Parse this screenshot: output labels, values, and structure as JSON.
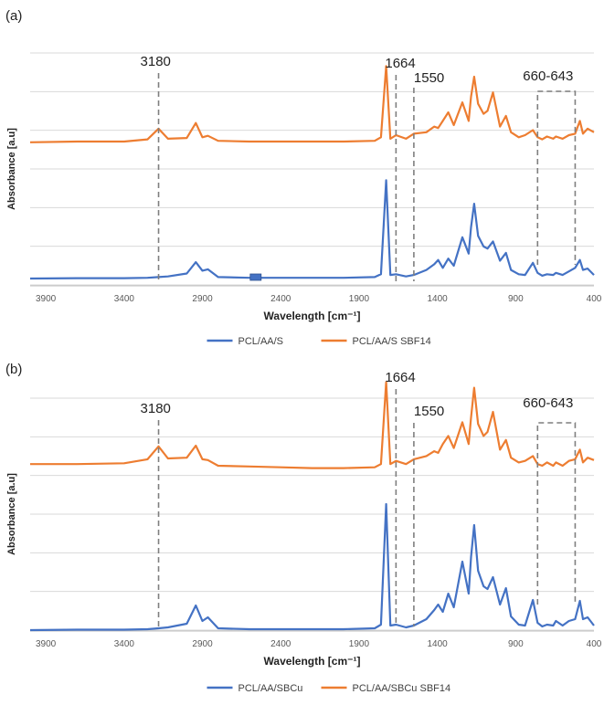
{
  "chart_data": [
    {
      "type": "line",
      "panel_label": "(a)",
      "xlabel": "Wavelength [cm⁻¹]",
      "ylabel": "Absorbance [a.u]",
      "xlim": [
        4000,
        400
      ],
      "xticks": [
        3900,
        3400,
        2900,
        2400,
        1900,
        1400,
        900,
        400
      ],
      "grid": true,
      "legend_position": "bottom",
      "colors": {
        "blue": "#4472C4",
        "orange": "#ED7D31",
        "annotation": "#7f7f7f"
      },
      "annotations": [
        {
          "text": "3180",
          "x": 3180
        },
        {
          "text": "1664",
          "x": 1664
        },
        {
          "text": "1550",
          "x": 1550
        },
        {
          "text": "660-643",
          "x_range": [
            760,
            520
          ]
        }
      ],
      "series": [
        {
          "name": "PCL/AA/S SBF14",
          "color": "#ED7D31",
          "x": [
            4000,
            3700,
            3400,
            3250,
            3180,
            3120,
            3000,
            2942,
            2900,
            2865,
            2800,
            2600,
            2400,
            2200,
            2000,
            1800,
            1760,
            1727,
            1700,
            1664,
            1600,
            1550,
            1470,
            1420,
            1395,
            1365,
            1330,
            1295,
            1240,
            1200,
            1185,
            1165,
            1140,
            1105,
            1080,
            1045,
            1000,
            962,
            930,
            880,
            840,
            790,
            760,
            730,
            700,
            660,
            643,
            600,
            560,
            520,
            490,
            470,
            440,
            400
          ],
          "y": [
            0.08,
            0.09,
            0.09,
            0.12,
            0.27,
            0.13,
            0.14,
            0.35,
            0.15,
            0.17,
            0.1,
            0.09,
            0.09,
            0.09,
            0.09,
            0.1,
            0.15,
            1.15,
            0.13,
            0.18,
            0.13,
            0.2,
            0.22,
            0.3,
            0.28,
            0.38,
            0.5,
            0.32,
            0.64,
            0.38,
            0.72,
            1.0,
            0.62,
            0.48,
            0.52,
            0.78,
            0.3,
            0.45,
            0.22,
            0.15,
            0.18,
            0.25,
            0.15,
            0.12,
            0.16,
            0.13,
            0.16,
            0.13,
            0.18,
            0.2,
            0.38,
            0.2,
            0.27,
            0.22
          ]
        },
        {
          "name": "PCL/AA/S",
          "color": "#4472C4",
          "x": [
            4000,
            3700,
            3400,
            3250,
            3180,
            3120,
            3000,
            2942,
            2900,
            2865,
            2800,
            2600,
            2400,
            2200,
            2000,
            1800,
            1760,
            1727,
            1700,
            1664,
            1600,
            1550,
            1470,
            1420,
            1395,
            1365,
            1330,
            1295,
            1240,
            1200,
            1185,
            1165,
            1140,
            1105,
            1080,
            1045,
            1000,
            962,
            930,
            880,
            840,
            790,
            760,
            730,
            700,
            660,
            643,
            600,
            560,
            520,
            490,
            470,
            440,
            400
          ],
          "y": [
            0.0,
            0.005,
            0.005,
            0.01,
            0.02,
            0.03,
            0.07,
            0.23,
            0.11,
            0.13,
            0.02,
            0.01,
            0.01,
            0.01,
            0.01,
            0.02,
            0.06,
            1.38,
            0.05,
            0.06,
            0.03,
            0.05,
            0.12,
            0.2,
            0.26,
            0.15,
            0.28,
            0.18,
            0.58,
            0.35,
            0.72,
            1.05,
            0.6,
            0.45,
            0.42,
            0.52,
            0.25,
            0.36,
            0.12,
            0.06,
            0.05,
            0.22,
            0.08,
            0.04,
            0.06,
            0.05,
            0.08,
            0.05,
            0.1,
            0.15,
            0.26,
            0.12,
            0.14,
            0.05
          ]
        }
      ],
      "marker": {
        "x": 2560,
        "label": ""
      }
    },
    {
      "type": "line",
      "panel_label": "(b)",
      "xlabel": "Wavelength [cm⁻¹]",
      "ylabel": "Absorbance [a.u]",
      "xlim": [
        4000,
        400
      ],
      "xticks": [
        3900,
        3400,
        2900,
        2400,
        1900,
        1400,
        900,
        400
      ],
      "grid": true,
      "legend_position": "bottom",
      "colors": {
        "blue": "#4472C4",
        "orange": "#ED7D31",
        "annotation": "#7f7f7f"
      },
      "annotations": [
        {
          "text": "3180",
          "x": 3180
        },
        {
          "text": "1664",
          "x": 1664
        },
        {
          "text": "1550",
          "x": 1550
        },
        {
          "text": "660-643",
          "x_range": [
            760,
            520
          ]
        }
      ],
      "series": [
        {
          "name": "PCL/AA/SBCu SBF14",
          "color": "#ED7D31",
          "x": [
            4000,
            3700,
            3400,
            3250,
            3180,
            3120,
            3000,
            2942,
            2900,
            2865,
            2800,
            2600,
            2400,
            2200,
            2000,
            1800,
            1760,
            1727,
            1700,
            1664,
            1600,
            1550,
            1470,
            1420,
            1395,
            1365,
            1330,
            1295,
            1240,
            1200,
            1185,
            1165,
            1140,
            1105,
            1080,
            1045,
            1000,
            962,
            930,
            880,
            840,
            790,
            760,
            730,
            700,
            660,
            643,
            600,
            560,
            520,
            490,
            470,
            440,
            400
          ],
          "y": [
            0.1,
            0.1,
            0.11,
            0.16,
            0.32,
            0.17,
            0.18,
            0.33,
            0.16,
            0.15,
            0.08,
            0.07,
            0.06,
            0.05,
            0.05,
            0.06,
            0.1,
            1.12,
            0.1,
            0.14,
            0.1,
            0.16,
            0.2,
            0.26,
            0.24,
            0.35,
            0.45,
            0.3,
            0.62,
            0.35,
            0.68,
            1.05,
            0.6,
            0.45,
            0.5,
            0.75,
            0.28,
            0.4,
            0.18,
            0.12,
            0.14,
            0.2,
            0.1,
            0.08,
            0.12,
            0.08,
            0.12,
            0.08,
            0.14,
            0.16,
            0.28,
            0.12,
            0.18,
            0.15
          ]
        },
        {
          "name": "PCL/AA/SBCu",
          "color": "#4472C4",
          "x": [
            4000,
            3700,
            3400,
            3250,
            3180,
            3120,
            3000,
            2942,
            2900,
            2865,
            2800,
            2600,
            2400,
            2200,
            2000,
            1800,
            1760,
            1727,
            1700,
            1664,
            1600,
            1550,
            1470,
            1420,
            1395,
            1365,
            1330,
            1295,
            1240,
            1200,
            1185,
            1165,
            1140,
            1105,
            1080,
            1045,
            1000,
            962,
            930,
            880,
            840,
            790,
            760,
            730,
            700,
            660,
            643,
            600,
            560,
            520,
            490,
            470,
            440,
            400
          ],
          "y": [
            0.0,
            0.005,
            0.005,
            0.01,
            0.02,
            0.03,
            0.07,
            0.27,
            0.1,
            0.14,
            0.02,
            0.01,
            0.01,
            0.01,
            0.01,
            0.02,
            0.06,
            1.38,
            0.05,
            0.06,
            0.03,
            0.05,
            0.12,
            0.22,
            0.28,
            0.2,
            0.4,
            0.25,
            0.75,
            0.4,
            0.8,
            1.15,
            0.65,
            0.48,
            0.45,
            0.58,
            0.28,
            0.46,
            0.15,
            0.06,
            0.05,
            0.33,
            0.08,
            0.04,
            0.06,
            0.05,
            0.1,
            0.05,
            0.1,
            0.12,
            0.32,
            0.12,
            0.14,
            0.05
          ]
        }
      ]
    }
  ]
}
